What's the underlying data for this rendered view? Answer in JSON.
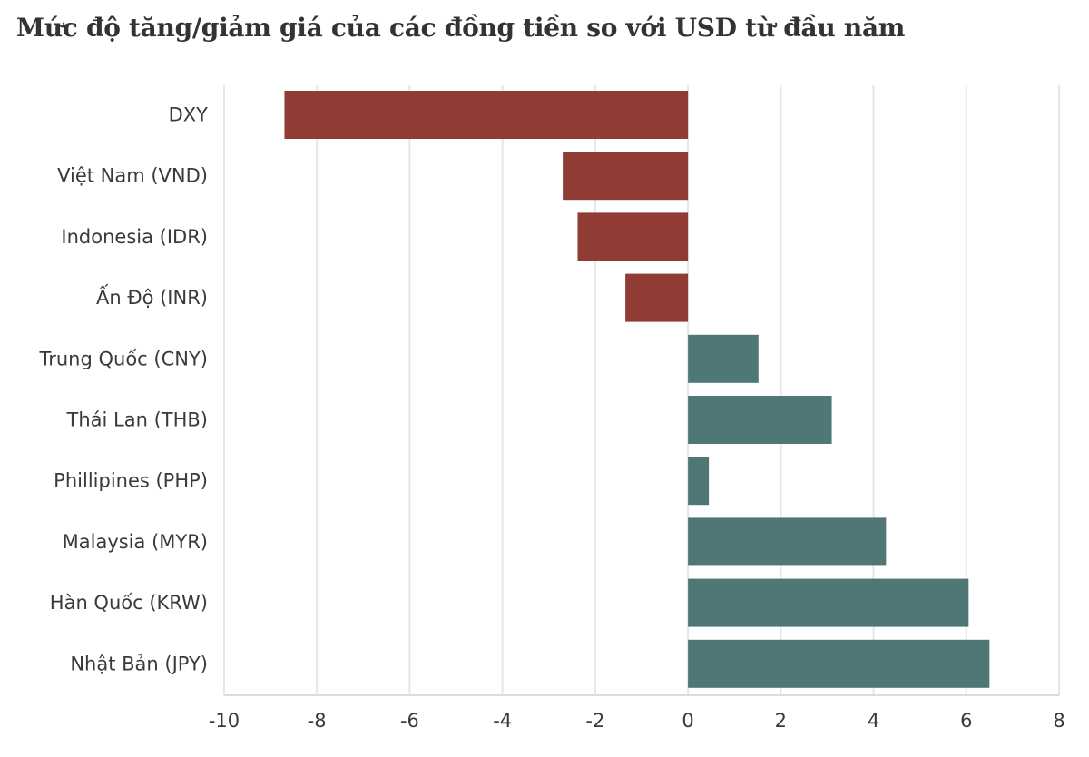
{
  "chart_data": {
    "type": "bar",
    "orientation": "horizontal",
    "title": "Mức độ tăng/giảm giá của các đồng tiền so với USD từ đầu năm",
    "xlabel": "",
    "ylabel": "",
    "xlim": [
      -10,
      8
    ],
    "xticks": [
      -10,
      -8,
      -6,
      -4,
      -2,
      0,
      2,
      4,
      6,
      8
    ],
    "grid": true,
    "legend": "none",
    "categories": [
      "DXY",
      "Việt Nam (VND)",
      "Indonesia (IDR)",
      "Ấn Độ (INR)",
      "Trung Quốc (CNY)",
      "Thái Lan (THB)",
      "Phillipines (PHP)",
      "Malaysia (MYR)",
      "Hàn Quốc (KRW)",
      "Nhật Bản (JPY)"
    ],
    "values": [
      -8.7,
      -2.7,
      -2.38,
      -1.35,
      1.52,
      3.1,
      0.45,
      4.27,
      6.05,
      6.5
    ],
    "colors": {
      "negative": "#8b302a",
      "positive": "#44706f"
    }
  }
}
